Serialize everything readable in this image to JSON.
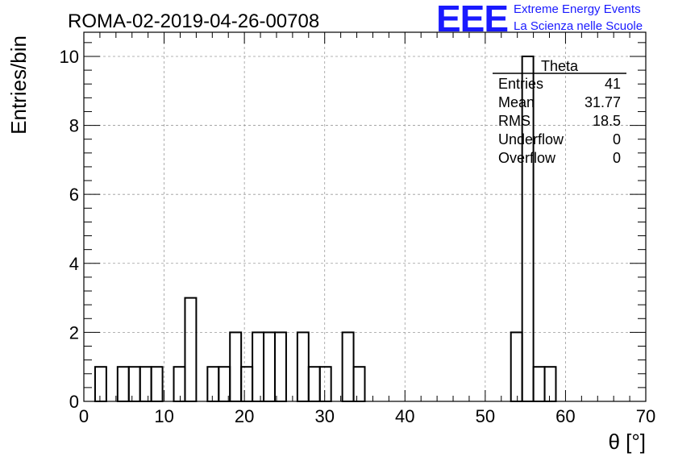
{
  "logo": {
    "mark": "EEE",
    "line1": "Extreme Energy Events",
    "line2": "La Scienza nelle Scuole",
    "color": "#1a1aff"
  },
  "chart_data": {
    "type": "bar",
    "title": "ROMA-02-2019-04-26-00708",
    "xlabel": "θ [°]",
    "ylabel": "Entries/bin",
    "xlim": [
      0,
      70
    ],
    "ylim": [
      0,
      10.7
    ],
    "xticks": [
      0,
      10,
      20,
      30,
      40,
      50,
      60,
      70
    ],
    "yticks": [
      0,
      2,
      4,
      6,
      8,
      10
    ],
    "grid": true,
    "bin_width": 1.4,
    "bin_low_edges": [
      1.4,
      4.2,
      5.6,
      7.0,
      8.4,
      11.2,
      12.6,
      15.4,
      16.8,
      18.2,
      19.6,
      21.0,
      22.4,
      23.8,
      26.6,
      28.0,
      29.4,
      32.2,
      33.6,
      53.2,
      54.6,
      56.0,
      57.4
    ],
    "bin_counts": [
      1,
      1,
      1,
      1,
      1,
      1,
      3,
      1,
      1,
      2,
      1,
      2,
      2,
      2,
      2,
      1,
      1,
      2,
      1,
      2,
      10,
      1,
      1
    ],
    "color": "#000000",
    "stats": {
      "name": "Theta",
      "rows": [
        {
          "label": "Entries",
          "value": "41"
        },
        {
          "label": "Mean",
          "value": "31.77"
        },
        {
          "label": "RMS",
          "value": "18.5"
        },
        {
          "label": "Underflow",
          "value": "0"
        },
        {
          "label": "Overflow",
          "value": "0"
        }
      ]
    }
  }
}
